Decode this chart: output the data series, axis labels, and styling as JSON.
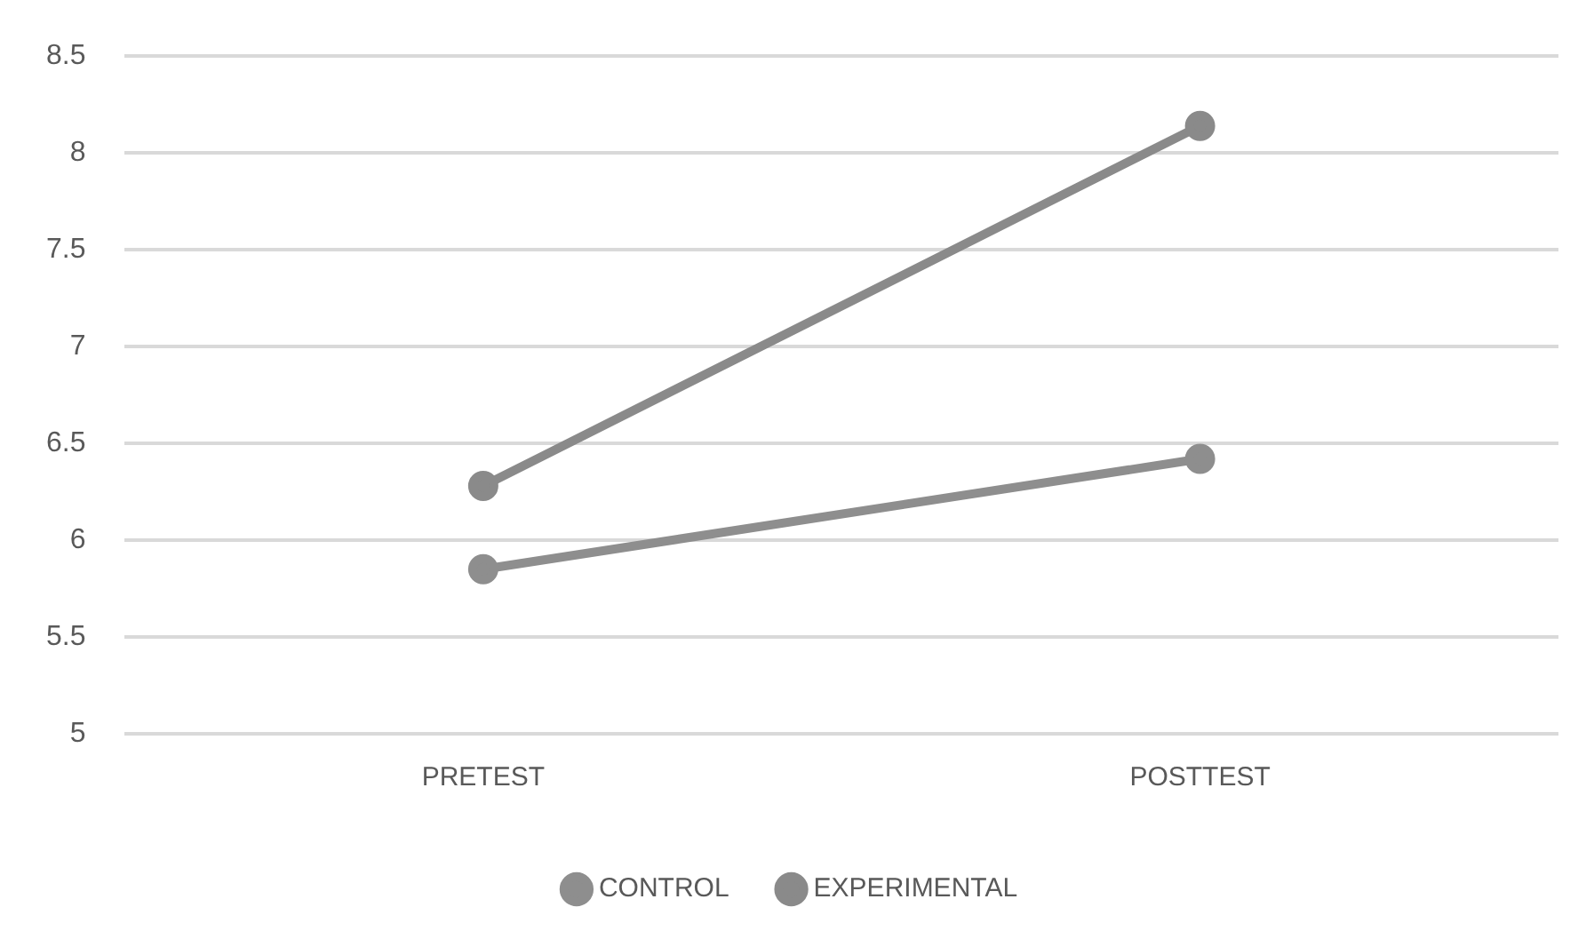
{
  "chart_data": {
    "type": "line",
    "categories": [
      "PRETEST",
      "POSTTEST"
    ],
    "series": [
      {
        "name": "CONTROL",
        "color": "#8e8e8e",
        "values": [
          5.85,
          6.42
        ]
      },
      {
        "name": "EXPERIMENTAL",
        "color": "#8a8a8a",
        "values": [
          6.28,
          8.14
        ]
      }
    ],
    "ylim": [
      5,
      8.5
    ],
    "yticks": [
      5,
      5.5,
      6,
      6.5,
      7,
      7.5,
      8,
      8.5
    ],
    "grid": "y",
    "legend": "bottom",
    "marker": "circle",
    "line_style": "solid"
  }
}
